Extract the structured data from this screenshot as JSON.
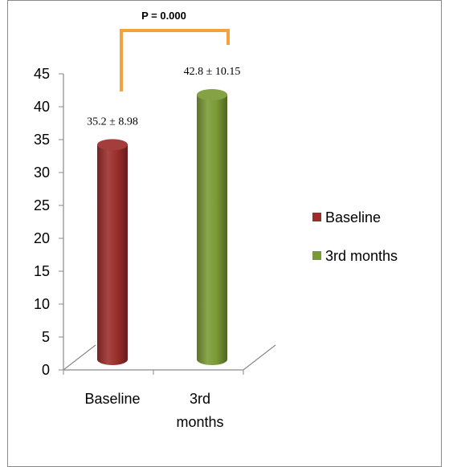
{
  "chart_data": {
    "type": "bar",
    "style": "3d-cylinder",
    "categories": [
      "Baseline",
      "3rd months"
    ],
    "category_tick_lines": [
      [
        "Baseline"
      ],
      [
        "3rd",
        "months"
      ]
    ],
    "series": [
      {
        "name": "Baseline",
        "values": [
          35.2,
          null
        ],
        "color": "#9b2d2a",
        "data_label": "35.2 ± 8.98"
      },
      {
        "name": "3rd months",
        "values": [
          null,
          42.8
        ],
        "color": "#7a9a35",
        "data_label": "42.8 ± 10.15"
      }
    ],
    "ylim": [
      0,
      45
    ],
    "yticks": [
      "0",
      "5",
      "10",
      "15",
      "20",
      "25",
      "30",
      "35",
      "40",
      "45"
    ],
    "grid": false,
    "legend_position": "right",
    "annotation": {
      "text": "P = 0.000",
      "type": "significance-bracket",
      "color": "#f4a23c"
    }
  }
}
